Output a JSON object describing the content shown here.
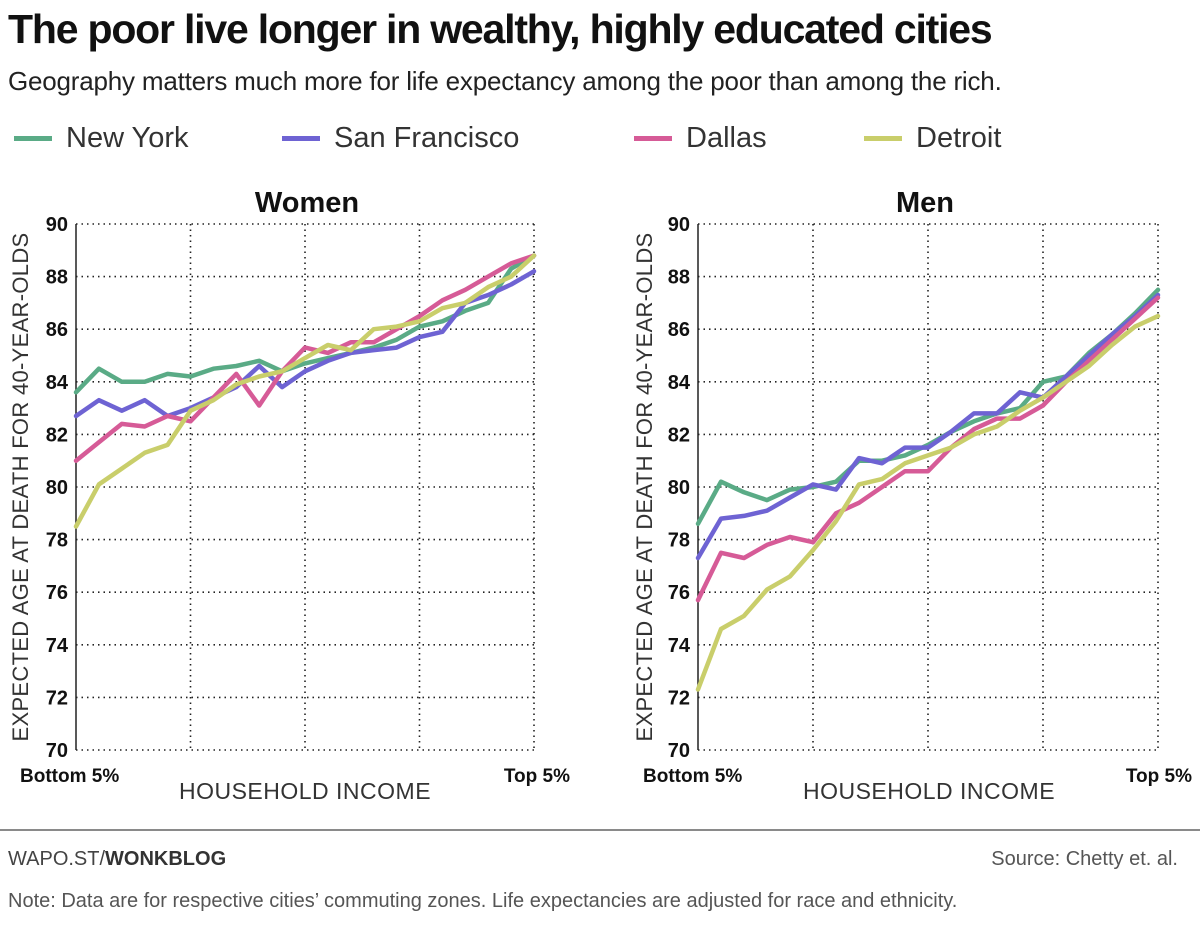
{
  "header": {
    "title": "The poor live longer in wealthy, highly educated cities",
    "subtitle": "Geography matters much more for life expectancy among the poor than among the rich."
  },
  "legend": [
    {
      "label": "New York",
      "color": "#5aab86"
    },
    {
      "label": "San Francisco",
      "color": "#6e63d3"
    },
    {
      "label": "Dallas",
      "color": "#d65b97"
    },
    {
      "label": "Detroit",
      "color": "#c9ce6b"
    }
  ],
  "chart_data": [
    {
      "type": "line",
      "title": "Women",
      "xlabel": "HOUSEHOLD INCOME",
      "ylabel": "EXPECTED AGE AT DEATH FOR 40-YEAR-OLDS",
      "x_tick_labels": [
        "Bottom 5%",
        "Top 5%"
      ],
      "ylim": [
        70,
        90
      ],
      "yticks": [
        70,
        72,
        74,
        76,
        78,
        80,
        82,
        84,
        86,
        88,
        90
      ],
      "xlim": [
        0,
        20
      ],
      "grid": true,
      "x": [
        0,
        1,
        2,
        3,
        4,
        5,
        6,
        7,
        8,
        9,
        10,
        11,
        12,
        13,
        14,
        15,
        16,
        17,
        18,
        19,
        20
      ],
      "series": [
        {
          "name": "New York",
          "color": "#5aab86",
          "values": [
            83.6,
            84.5,
            84.0,
            84.0,
            84.3,
            84.2,
            84.5,
            84.6,
            84.8,
            84.4,
            84.7,
            84.9,
            85.1,
            85.3,
            85.6,
            86.1,
            86.3,
            86.7,
            87.0,
            88.3,
            88.8
          ]
        },
        {
          "name": "San Francisco",
          "color": "#6e63d3",
          "values": [
            82.7,
            83.3,
            82.9,
            83.3,
            82.7,
            83.0,
            83.4,
            83.8,
            84.6,
            83.8,
            84.4,
            84.8,
            85.1,
            85.2,
            85.3,
            85.7,
            85.9,
            87.0,
            87.3,
            87.7,
            88.2
          ]
        },
        {
          "name": "Dallas",
          "color": "#d65b97",
          "values": [
            81.0,
            81.7,
            82.4,
            82.3,
            82.7,
            82.5,
            83.4,
            84.3,
            83.1,
            84.4,
            85.3,
            85.1,
            85.5,
            85.5,
            86.0,
            86.5,
            87.1,
            87.5,
            88.0,
            88.5,
            88.8
          ]
        },
        {
          "name": "Detroit",
          "color": "#c9ce6b",
          "values": [
            78.5,
            80.1,
            80.7,
            81.3,
            81.6,
            82.9,
            83.3,
            83.9,
            84.2,
            84.4,
            84.9,
            85.4,
            85.2,
            86.0,
            86.1,
            86.3,
            86.8,
            87.0,
            87.6,
            88.0,
            88.8
          ]
        }
      ]
    },
    {
      "type": "line",
      "title": "Men",
      "xlabel": "HOUSEHOLD INCOME",
      "ylabel": "EXPECTED AGE AT DEATH FOR 40-YEAR-OLDS",
      "x_tick_labels": [
        "Bottom 5%",
        "Top 5%"
      ],
      "ylim": [
        70,
        90
      ],
      "yticks": [
        70,
        72,
        74,
        76,
        78,
        80,
        82,
        84,
        86,
        88,
        90
      ],
      "xlim": [
        0,
        20
      ],
      "grid": true,
      "x": [
        0,
        1,
        2,
        3,
        4,
        5,
        6,
        7,
        8,
        9,
        10,
        11,
        12,
        13,
        14,
        15,
        16,
        17,
        18,
        19,
        20
      ],
      "series": [
        {
          "name": "New York",
          "color": "#5aab86",
          "values": [
            78.6,
            80.2,
            79.8,
            79.5,
            79.9,
            80.0,
            80.2,
            81.0,
            81.0,
            81.2,
            81.6,
            82.1,
            82.5,
            82.8,
            83.0,
            84.0,
            84.2,
            85.1,
            85.8,
            86.6,
            87.5
          ]
        },
        {
          "name": "San Francisco",
          "color": "#6e63d3",
          "values": [
            77.3,
            78.8,
            78.9,
            79.1,
            79.6,
            80.1,
            79.9,
            81.1,
            80.9,
            81.5,
            81.5,
            82.1,
            82.8,
            82.8,
            83.6,
            83.4,
            84.2,
            85.0,
            85.8,
            86.5,
            87.3
          ]
        },
        {
          "name": "Dallas",
          "color": "#d65b97",
          "values": [
            75.7,
            77.5,
            77.3,
            77.8,
            78.1,
            77.9,
            79.0,
            79.4,
            80.0,
            80.6,
            80.6,
            81.5,
            82.2,
            82.6,
            82.6,
            83.1,
            84.0,
            84.8,
            85.6,
            86.4,
            87.2
          ]
        },
        {
          "name": "Detroit",
          "color": "#c9ce6b",
          "values": [
            72.3,
            74.6,
            75.1,
            76.1,
            76.6,
            77.6,
            78.7,
            80.1,
            80.3,
            80.9,
            81.2,
            81.5,
            82.0,
            82.3,
            82.9,
            83.4,
            84.0,
            84.6,
            85.4,
            86.1,
            86.5
          ]
        }
      ]
    }
  ],
  "footer": {
    "credit_prefix": "WAPO.ST/",
    "credit_bold": "WONKBLOG",
    "source": "Source: Chetty et. al.",
    "note": "Note: Data are for respective cities’ commuting zones. Life expectancies are adjusted for race and ethnicity."
  }
}
